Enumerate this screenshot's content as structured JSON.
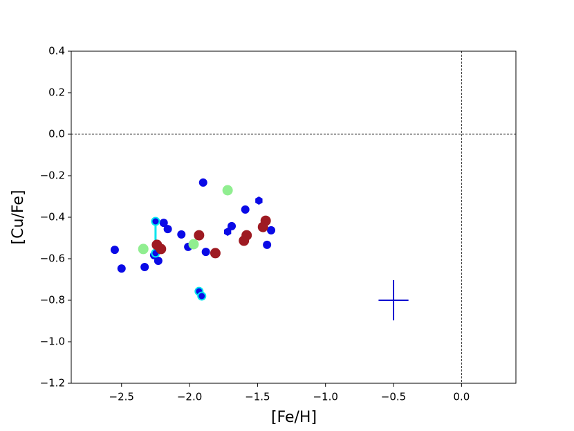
{
  "chart_data": {
    "type": "scatter",
    "x_label": "[Fe/H]",
    "y_label": "[Cu/Fe]",
    "xlim": [
      -2.87,
      0.4
    ],
    "ylim": [
      -1.2,
      0.4
    ],
    "xticks": [
      {
        "value": -2.5,
        "label": "−2.5"
      },
      {
        "value": -2.0,
        "label": "−2.0"
      },
      {
        "value": -1.5,
        "label": "−1.5"
      },
      {
        "value": -1.0,
        "label": "−1.0"
      },
      {
        "value": -0.5,
        "label": "−0.5"
      },
      {
        "value": 0,
        "label": "0.0"
      }
    ],
    "yticks": [
      {
        "value": 0.4,
        "label": "0.4"
      },
      {
        "value": 0.2,
        "label": "0.2"
      },
      {
        "value": 0,
        "label": "0.0"
      },
      {
        "value": -0.2,
        "label": "−0.2"
      },
      {
        "value": -0.4,
        "label": "−0.4"
      },
      {
        "value": -0.6,
        "label": "−0.6"
      },
      {
        "value": -0.8,
        "label": "−0.8"
      },
      {
        "value": -1.0,
        "label": "−1.0"
      },
      {
        "value": -1.2,
        "label": "−1.2"
      }
    ],
    "hlines": [
      0
    ],
    "vlines": [
      0
    ],
    "series": [
      {
        "color": "#0a0ae6",
        "marker": "circle",
        "size": 6,
        "x": [
          -2.55,
          -2.5,
          -2.33,
          -2.26,
          -2.23,
          -2.19,
          -2.16,
          -2.06,
          -2.01,
          -1.9,
          -1.88,
          -1.69,
          -1.59,
          -1.43,
          -1.4
        ],
        "values": [
          -0.557,
          -0.647,
          -0.64,
          -0.583,
          -0.61,
          -0.427,
          -0.457,
          -0.483,
          -0.543,
          -0.233,
          -0.567,
          -0.443,
          -0.363,
          -0.533,
          -0.463
        ]
      },
      {
        "color": "#0a0ae6",
        "marker": "hexagon",
        "size": 6,
        "x": [
          -1.72,
          -1.49
        ],
        "values": [
          -0.47,
          -0.32
        ]
      },
      {
        "color": "#0a0ae6",
        "edge": "#00e5ee",
        "marker": "circle",
        "size": 5.5,
        "connect": true,
        "x": [
          -2.25,
          -2.25
        ],
        "values": [
          -0.42,
          -0.573
        ]
      },
      {
        "color": "#0a0ae6",
        "edge": "#00e5ee",
        "marker": "circle",
        "size": 5.5,
        "connect": true,
        "x": [
          -1.93,
          -1.91
        ],
        "values": [
          -0.757,
          -0.78
        ]
      },
      {
        "color": "#90ee90",
        "marker": "circle",
        "size": 7.5,
        "x": [
          -2.34,
          -1.97,
          -1.72
        ],
        "values": [
          -0.553,
          -0.53,
          -0.27
        ]
      },
      {
        "color": "#9e1a22",
        "marker": "circle",
        "size": 7.5,
        "x": [
          -2.24,
          -2.21,
          -1.93,
          -1.81,
          -1.6,
          -1.58,
          -1.46,
          -1.44
        ],
        "values": [
          -0.533,
          -0.553,
          -0.487,
          -0.573,
          -0.513,
          -0.487,
          -0.447,
          -0.417
        ]
      }
    ],
    "error_bar": {
      "x": -0.5,
      "y": -0.8,
      "xerr": 0.11,
      "yerr": 0.097,
      "color": "#0a0ad0"
    }
  }
}
